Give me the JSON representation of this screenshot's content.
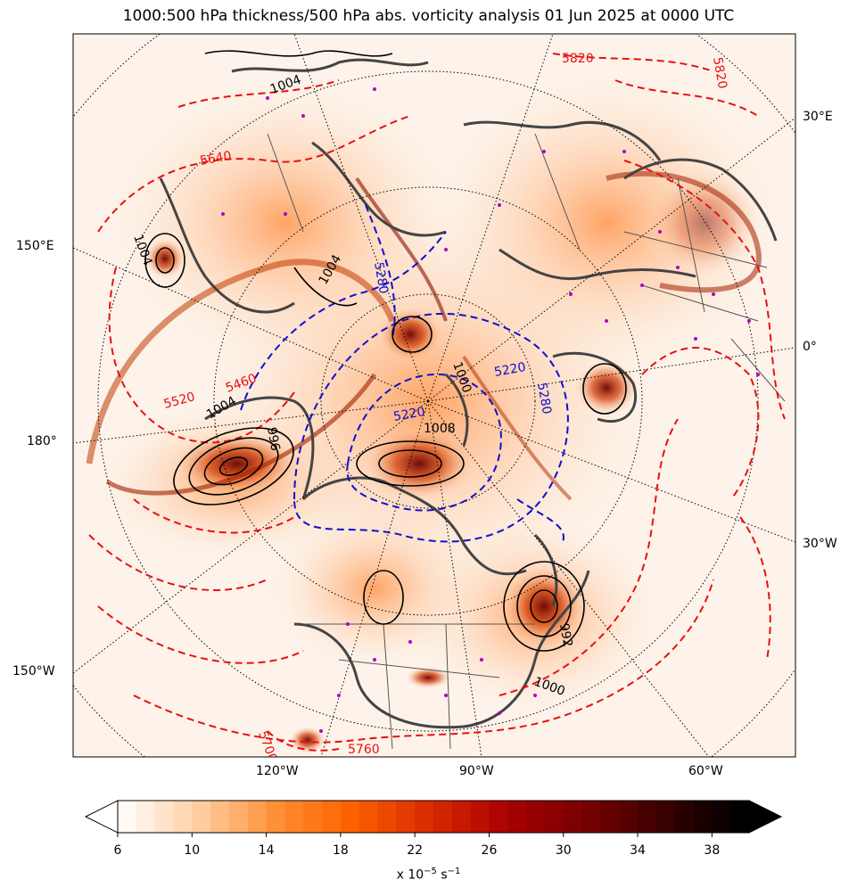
{
  "title": "1000:500 hPa thickness/500 hPa abs. vorticity analysis 01 Jun 2025 at 0000 UTC",
  "map": {
    "projection": "north-polar-stereographic",
    "background_field": "500 hPa absolute vorticity (shaded)",
    "lon_labels": {
      "left": [
        "150°E",
        "180°",
        "150°W"
      ],
      "right": [
        "30°E",
        "0°",
        "30°W"
      ],
      "bottom": [
        "120°W",
        "90°W",
        "60°W"
      ]
    },
    "thickness_labels": [
      "5520",
      "5220",
      "5280",
      "5820",
      "5640",
      "5760",
      "5700",
      "5460"
    ],
    "mslp_labels": [
      "1004",
      "1000",
      "996",
      "992",
      "1008"
    ],
    "colors": {
      "thickness_cold": "#1010d0",
      "thickness_warm": "#e81010",
      "mslp": "#000000",
      "coastline": "#444444",
      "markers": "#b000c8"
    }
  },
  "colorbar": {
    "ticks": [
      "6",
      "10",
      "14",
      "18",
      "22",
      "26",
      "30",
      "34",
      "38"
    ],
    "label": "x 10",
    "label_exp": "−5",
    "label_unit": " s",
    "label_unit_exp": "−1",
    "range": [
      6,
      40
    ],
    "extend": "both"
  }
}
